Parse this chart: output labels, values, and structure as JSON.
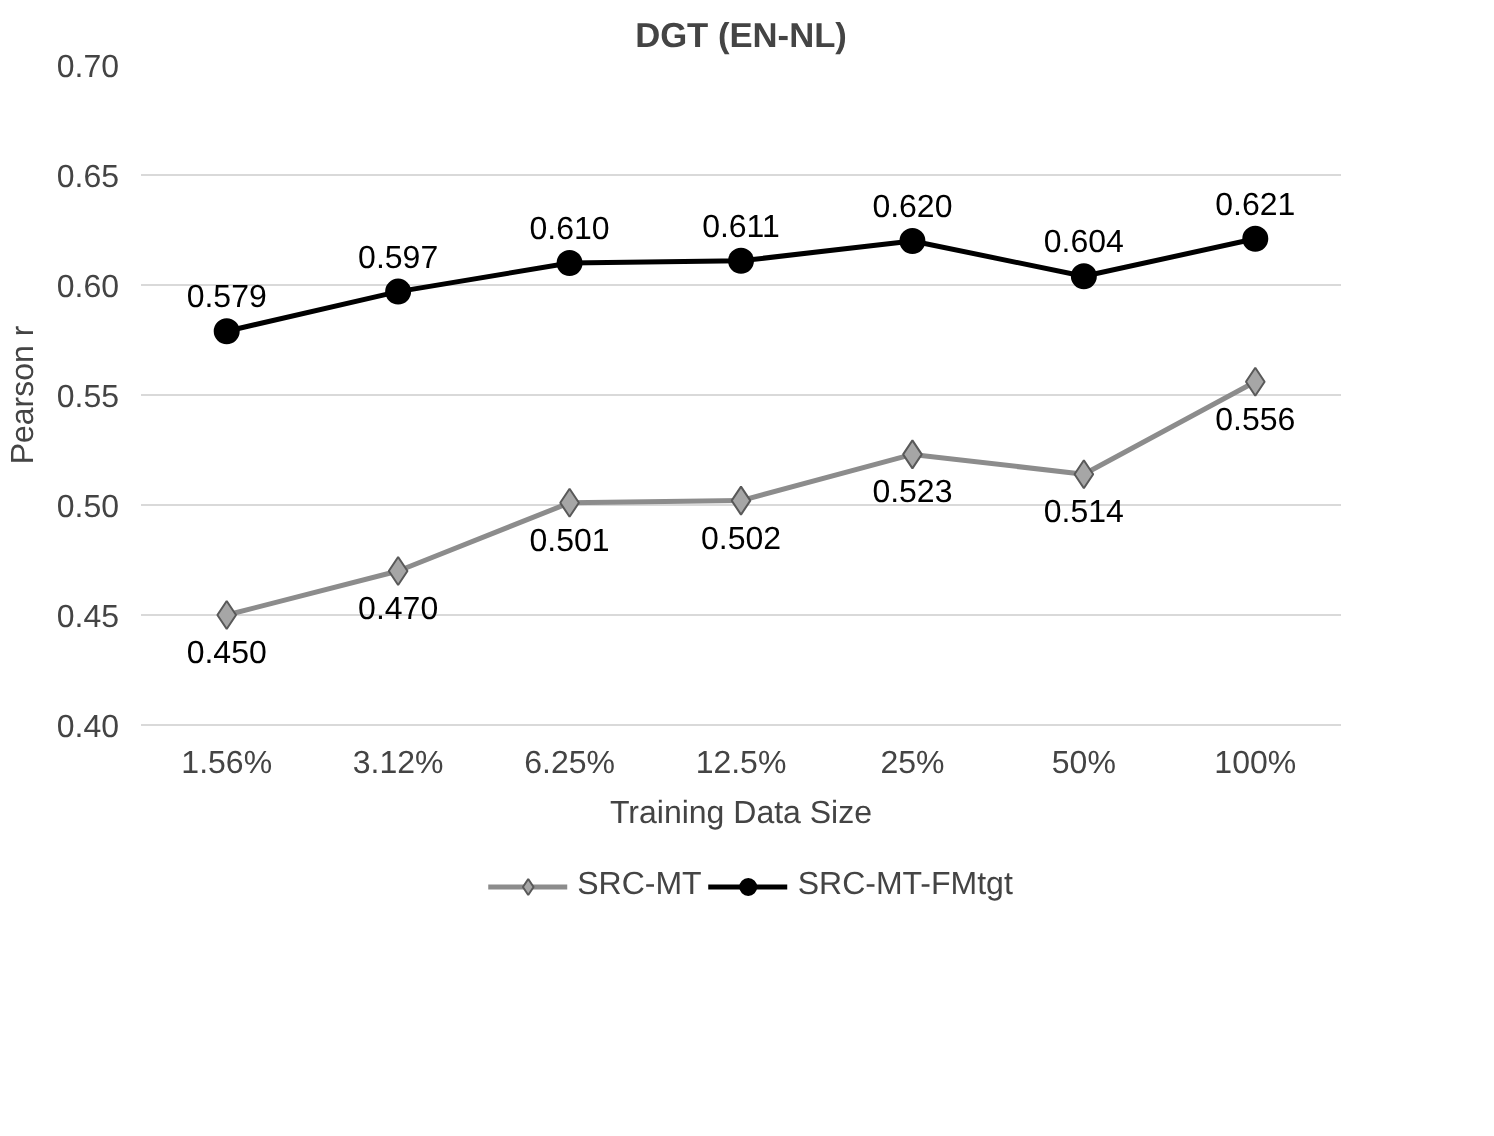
{
  "chart_data": {
    "type": "line",
    "title": "DGT (EN-NL)",
    "xlabel": "Training Data Size",
    "ylabel": "Pearson r",
    "categories": [
      "1.56%",
      "3.12%",
      "6.25%",
      "12.5%",
      "25%",
      "50%",
      "100%"
    ],
    "series": [
      {
        "name": "SRC-MT",
        "color": "#8c8c8c",
        "marker": "diamond",
        "values": [
          0.45,
          0.47,
          0.501,
          0.502,
          0.523,
          0.514,
          0.556
        ],
        "value_labels": [
          "0.450",
          "0.470",
          "0.501",
          "0.502",
          "0.523",
          "0.514",
          "0.556"
        ]
      },
      {
        "name": "SRC-MT-FMtgt",
        "color": "#000000",
        "marker": "circle",
        "values": [
          0.579,
          0.597,
          0.61,
          0.611,
          0.62,
          0.604,
          0.621
        ],
        "value_labels": [
          "0.579",
          "0.597",
          "0.610",
          "0.611",
          "0.620",
          "0.604",
          "0.621"
        ]
      }
    ],
    "ylim": [
      0.4,
      0.7
    ],
    "yticks": [
      {
        "value": 0.4,
        "label": "0.40"
      },
      {
        "value": 0.45,
        "label": "0.45"
      },
      {
        "value": 0.5,
        "label": "0.50"
      },
      {
        "value": 0.55,
        "label": "0.55"
      },
      {
        "value": 0.6,
        "label": "0.60"
      },
      {
        "value": 0.65,
        "label": "0.65"
      },
      {
        "value": 0.7,
        "label": "0.70"
      }
    ],
    "grid": "y",
    "legend": "bottom",
    "line_style": "solid"
  }
}
